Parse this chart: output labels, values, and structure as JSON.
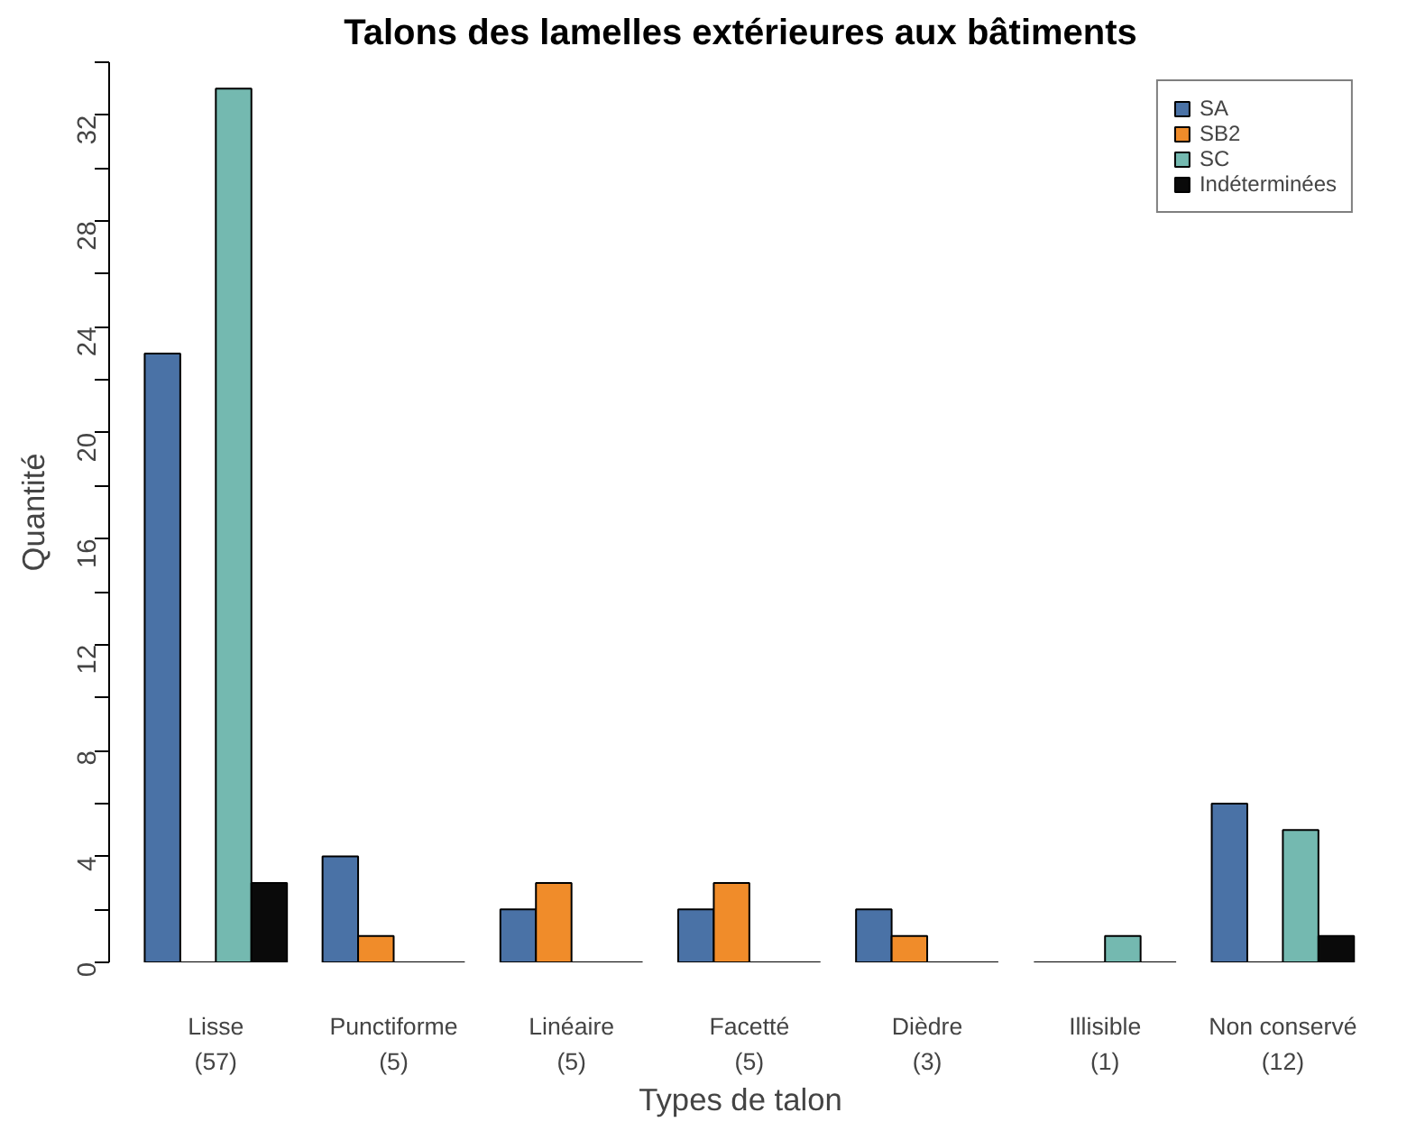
{
  "chart_data": {
    "type": "bar",
    "title": "Talons des lamelles extérieures aux bâtiments",
    "xlabel": "Types de talon",
    "ylabel": "Quantité",
    "categories": [
      "Lisse\n(57)",
      "Punctiforme\n(5)",
      "Linéaire\n(5)",
      "Facetté\n(5)",
      "Dièdre\n(3)",
      "Illisible\n(1)",
      "Non conservé\n(12)"
    ],
    "series": [
      {
        "name": "SA",
        "color": "#4a72a6",
        "values": [
          23,
          4,
          2,
          2,
          2,
          0,
          6
        ]
      },
      {
        "name": "SB2",
        "color": "#f08c2a",
        "values": [
          0,
          1,
          3,
          3,
          1,
          0,
          0
        ]
      },
      {
        "name": "SC",
        "color": "#74b9b0",
        "values": [
          33,
          0,
          0,
          0,
          0,
          1,
          5
        ]
      },
      {
        "name": "Indéterminées",
        "color": "#0a0a0a",
        "values": [
          3,
          0,
          0,
          0,
          0,
          0,
          1
        ]
      }
    ],
    "ylim": [
      0,
      34
    ],
    "yticks": [
      0,
      {
        "value": 2,
        "label": null
      },
      4,
      {
        "value": 6,
        "label": null
      },
      8,
      {
        "value": 10,
        "label": null
      },
      12,
      {
        "value": 14,
        "label": null
      },
      16,
      {
        "value": 18,
        "label": null
      },
      20,
      {
        "value": 22,
        "label": null
      },
      24,
      {
        "value": 26,
        "label": null
      },
      28,
      {
        "value": 30,
        "label": null
      },
      32,
      {
        "value": 34,
        "label": null
      }
    ],
    "grid": false,
    "legend": "top right"
  }
}
